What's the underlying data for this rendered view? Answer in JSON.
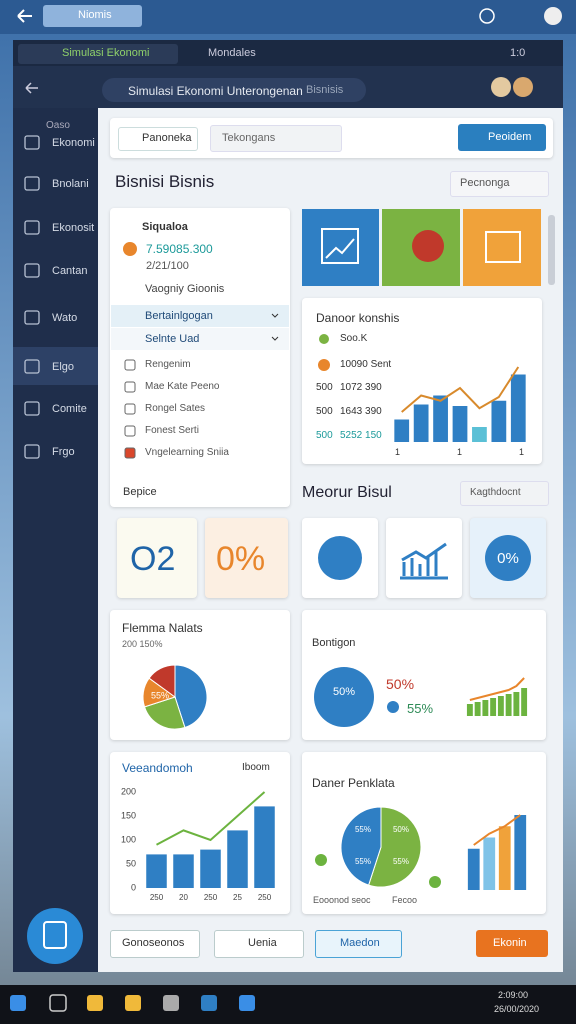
{
  "topbar": {
    "tab": "Niomis"
  },
  "window": {
    "tabs": [
      "Simulasi Ekonomi",
      "Mondales"
    ],
    "time": "1:0"
  },
  "address": {
    "query": "Simulasi Ekonomi Unterongenan",
    "suffix": "Bisnisis"
  },
  "sidebar": {
    "header": "Oaso",
    "items": [
      "Ekonomi",
      "Bnolani",
      "Ekonosit",
      "Cantan",
      "Wato",
      "Elgo",
      "Comite",
      "Frgo"
    ]
  },
  "toolbar": {
    "primary": "Panoneka",
    "select": "Tekongans",
    "action": "Peoidem"
  },
  "section1": {
    "title": "Bisnisi Bisnis",
    "chip": "Pecnonga"
  },
  "panel": {
    "title": "Siqualoa",
    "amount": "7.59085.300",
    "date": "2/21/100",
    "subtitle": "Vaogniy Gioonis",
    "groups": [
      "Bertainlgogan",
      "Selnte Uad"
    ],
    "items": [
      "Rengenim",
      "Mae Kate Peeno",
      "Rongel Sates",
      "Fonest Serti",
      "Vngelearning Sniia"
    ],
    "footer": "Bepice"
  },
  "report": {
    "title": "Danoor konshis",
    "legend": [
      "Soo.K",
      "10090 Sent"
    ],
    "rows": [
      [
        "500",
        "1072 390"
      ],
      [
        "500",
        "1643 390"
      ],
      [
        "500",
        "5252 150"
      ]
    ],
    "x_labels": [
      "1",
      "1",
      "1"
    ],
    "bars": [
      30,
      50,
      62,
      48,
      20,
      55,
      90
    ],
    "line": [
      40,
      62,
      55,
      72,
      45,
      60,
      100
    ]
  },
  "section2": {
    "title": "Meorur Bisul",
    "select": "Kagthdocnt"
  },
  "stats": [
    "O2",
    "0%",
    "0%"
  ],
  "pie_card": {
    "title": "Flemma Nalats",
    "subtitle": "200 150%",
    "label": "55%",
    "slices": [
      45,
      25,
      15,
      15
    ]
  },
  "progress_card": {
    "title": "Bontigon",
    "donut_label": "50%",
    "values": [
      "50%",
      "55%"
    ],
    "bars": [
      30,
      35,
      40,
      45,
      50,
      55,
      60,
      70
    ],
    "line": [
      40,
      45,
      50,
      55,
      60,
      65,
      75,
      95
    ]
  },
  "trend_card": {
    "title": "Veeandomoh",
    "select": "Iboom",
    "yticks": [
      0,
      50,
      100,
      150,
      200
    ],
    "categories": [
      "250",
      "20",
      "250",
      "25",
      "250"
    ],
    "bars": [
      70,
      70,
      80,
      120,
      170
    ],
    "line": [
      90,
      120,
      100,
      150,
      200
    ]
  },
  "pie2_card": {
    "title": "Daner Penklata",
    "slices": [
      55,
      45
    ],
    "labels": [
      "55%",
      "50%",
      "55%",
      "55%"
    ],
    "captions": [
      "Eooonod seoc",
      "Fecoo"
    ],
    "bars": [
      55,
      70,
      85,
      100
    ],
    "line": [
      60,
      75,
      85,
      100
    ]
  },
  "bottom": {
    "buttons": [
      "Gonoseonos",
      "Uenia",
      "Maedon"
    ],
    "action": "Ekonin"
  },
  "taskbar": {
    "time": "2:09:00",
    "date": "26/00/2020"
  }
}
